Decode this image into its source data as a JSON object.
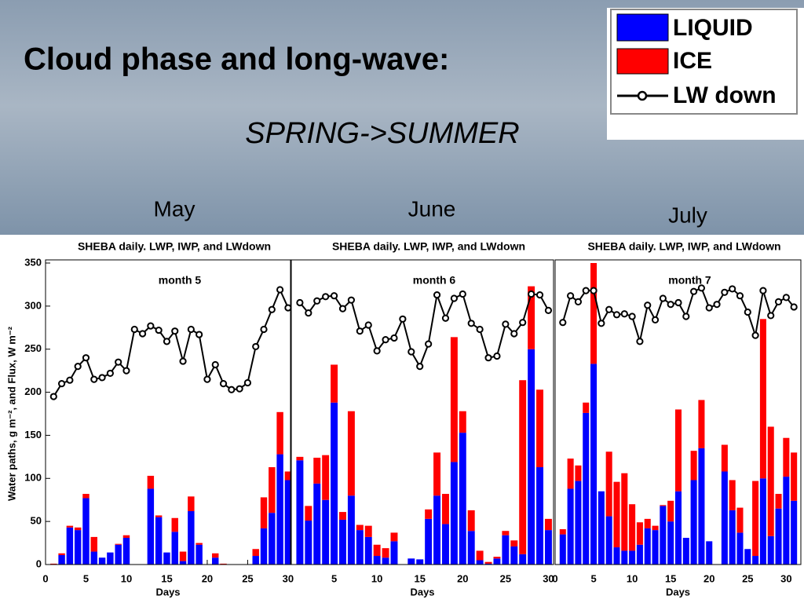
{
  "slide": {
    "title": "Cloud phase and long-wave:",
    "subtitle": "SPRING->SUMMER",
    "months": [
      "May",
      "June",
      "July"
    ]
  },
  "chart_data": [
    {
      "type": "bar",
      "stacked": true,
      "title": "SHEBA daily. LWP, IWP, and LWdown",
      "annotation": "month 5",
      "xlabel": "Days",
      "ylabel": "Water paths, g m⁻², and Flux, W m⁻²",
      "x": [
        1,
        2,
        3,
        4,
        5,
        6,
        7,
        8,
        9,
        10,
        11,
        12,
        13,
        14,
        15,
        16,
        17,
        18,
        19,
        20,
        21,
        22,
        23,
        24,
        25,
        26,
        27,
        28,
        29,
        30
      ],
      "xlim": [
        0,
        30.3
      ],
      "xticks": [
        0,
        5,
        10,
        15,
        20,
        25,
        30
      ],
      "ylim": [
        0,
        350
      ],
      "yticks": [
        0,
        50,
        100,
        150,
        200,
        250,
        300,
        350
      ],
      "series": [
        {
          "name": "LIQUID",
          "color": "#0000ff",
          "values": [
            0,
            11,
            43,
            40,
            77,
            15,
            8,
            14,
            23,
            31,
            0,
            0,
            88,
            55,
            14,
            38,
            4,
            62,
            23,
            0,
            8,
            0,
            0,
            0,
            0,
            10,
            42,
            60,
            128,
            98
          ]
        },
        {
          "name": "ICE",
          "color": "#ff0000",
          "values": [
            1,
            2,
            2,
            3,
            5,
            17,
            0,
            0,
            1,
            3,
            0,
            0,
            15,
            2,
            0,
            16,
            11,
            17,
            2,
            0,
            5,
            1,
            0,
            0,
            0,
            8,
            36,
            53,
            49,
            10
          ]
        },
        {
          "name": "LW down",
          "type": "line",
          "color": "#000000",
          "values": [
            195,
            210,
            214,
            230,
            240,
            215,
            217,
            222,
            235,
            225,
            273,
            268,
            277,
            272,
            259,
            271,
            236,
            273,
            267,
            215,
            232,
            210,
            203,
            204,
            211,
            253,
            273,
            296,
            319,
            298
          ]
        }
      ]
    },
    {
      "type": "bar",
      "stacked": true,
      "title": "SHEBA daily. LWP, IWP, and LWdown",
      "annotation": "month 6",
      "xlabel": "Days",
      "x": [
        1,
        2,
        3,
        4,
        5,
        6,
        7,
        8,
        9,
        10,
        11,
        12,
        13,
        14,
        15,
        16,
        17,
        18,
        19,
        20,
        21,
        22,
        23,
        24,
        25,
        26,
        27,
        28,
        29,
        30
      ],
      "xlim": [
        0,
        30.6
      ],
      "xticks": [
        5,
        10,
        15,
        20,
        25,
        30
      ],
      "ylim": [
        0,
        350
      ],
      "series": [
        {
          "color": "#0000ff",
          "values": [
            121,
            51,
            94,
            75,
            188,
            52,
            80,
            40,
            32,
            10,
            8,
            27,
            0,
            7,
            6,
            53,
            80,
            47,
            119,
            153,
            39,
            5,
            1,
            7,
            34,
            21,
            12,
            250,
            113,
            40
          ]
        },
        {
          "color": "#ff0000",
          "values": [
            4,
            17,
            30,
            52,
            44,
            9,
            98,
            6,
            13,
            13,
            11,
            10,
            0,
            0,
            0,
            11,
            50,
            35,
            145,
            25,
            24,
            11,
            2,
            2,
            5,
            7,
            202,
            73,
            90,
            13
          ]
        },
        {
          "type": "line",
          "color": "#000000",
          "values": [
            304,
            292,
            306,
            311,
            312,
            297,
            307,
            271,
            278,
            248,
            261,
            263,
            285,
            247,
            230,
            256,
            313,
            286,
            309,
            314,
            280,
            273,
            240,
            242,
            279,
            268,
            281,
            314,
            313,
            295
          ]
        }
      ]
    },
    {
      "type": "bar",
      "stacked": true,
      "title": "SHEBA daily. LWP, IWP, and LWdown",
      "annotation": "month 7",
      "xlabel": "Days",
      "x": [
        1,
        2,
        3,
        4,
        5,
        6,
        7,
        8,
        9,
        10,
        11,
        12,
        13,
        14,
        15,
        16,
        17,
        18,
        19,
        20,
        21,
        22,
        23,
        24,
        25,
        26,
        27,
        28,
        29,
        30,
        31
      ],
      "xlim": [
        0,
        31.9
      ],
      "xticks": [
        0,
        5,
        10,
        15,
        20,
        25,
        30
      ],
      "ylim": [
        0,
        350
      ],
      "series": [
        {
          "color": "#0000ff",
          "values": [
            35,
            88,
            97,
            176,
            233,
            85,
            56,
            20,
            16,
            16,
            23,
            42,
            40,
            68,
            50,
            85,
            31,
            98,
            135,
            27,
            0,
            108,
            63,
            37,
            18,
            10,
            100,
            33,
            65,
            102,
            74
          ]
        },
        {
          "color": "#ff0000",
          "values": [
            6,
            35,
            18,
            12,
            130,
            0,
            75,
            76,
            90,
            54,
            26,
            11,
            5,
            1,
            24,
            95,
            0,
            34,
            56,
            0,
            0,
            31,
            35,
            29,
            0,
            87,
            185,
            127,
            17,
            45,
            56
          ]
        },
        {
          "type": "line",
          "color": "#000000",
          "values": [
            281,
            312,
            305,
            318,
            318,
            280,
            296,
            290,
            291,
            288,
            259,
            301,
            284,
            309,
            302,
            304,
            288,
            317,
            321,
            298,
            302,
            316,
            320,
            312,
            293,
            266,
            318,
            289,
            305,
            310,
            299
          ]
        }
      ]
    }
  ]
}
